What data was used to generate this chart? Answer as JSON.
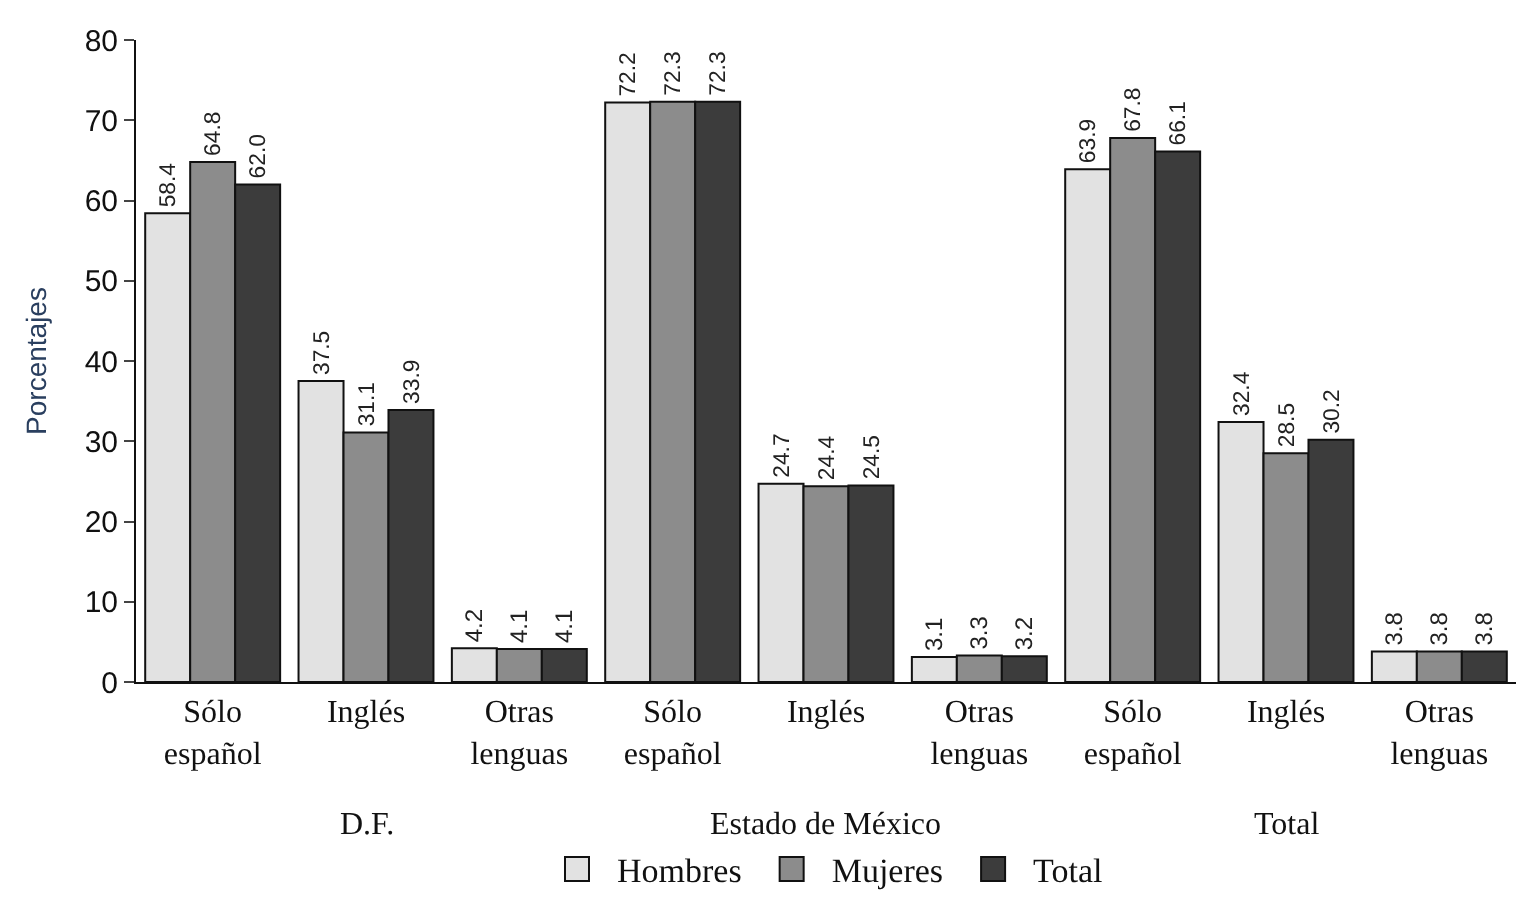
{
  "chart_data": {
    "type": "bar",
    "ylabel": "Porcentajes",
    "categories": [
      "Sólo español",
      "Inglés",
      "Otras lenguas",
      "Sólo español",
      "Inglés",
      "Otras lenguas",
      "Sólo español",
      "Inglés",
      "Otras lenguas"
    ],
    "series": [
      {
        "name": "Hombres",
        "color": "#e2e2e2",
        "values": [
          58.4,
          37.5,
          4.2,
          72.2,
          24.7,
          3.1,
          63.9,
          32.4,
          3.8
        ],
        "value_labels": [
          "58.4",
          "37.5",
          "4.2",
          "72.2",
          "24.7",
          "3.1",
          "63.9",
          "32.4",
          "3.8"
        ]
      },
      {
        "name": "Mujeres",
        "color": "#8c8c8c",
        "values": [
          64.8,
          31.1,
          4.1,
          72.3,
          24.4,
          3.3,
          67.8,
          28.5,
          3.8
        ],
        "value_labels": [
          "64.8",
          "31.1",
          "4.1",
          "72.3",
          "24.4",
          "3.3",
          "67.8",
          "28.5",
          "3.8"
        ]
      },
      {
        "name": "Total",
        "color": "#3c3c3c",
        "values": [
          62.0,
          33.9,
          4.1,
          72.3,
          24.5,
          3.2,
          66.1,
          30.2,
          3.8
        ],
        "value_labels": [
          "62.0",
          "33.9",
          "4.1",
          "72.3",
          "24.5",
          "3.2",
          "66.1",
          "30.2",
          "3.8"
        ]
      }
    ],
    "annotations": [
      "D.F.",
      "Estado de México",
      "Total"
    ],
    "ylim": [
      0,
      80
    ],
    "yticks": [
      0,
      10,
      20,
      30,
      40,
      50,
      60,
      70,
      80
    ],
    "legend": "bottom"
  }
}
